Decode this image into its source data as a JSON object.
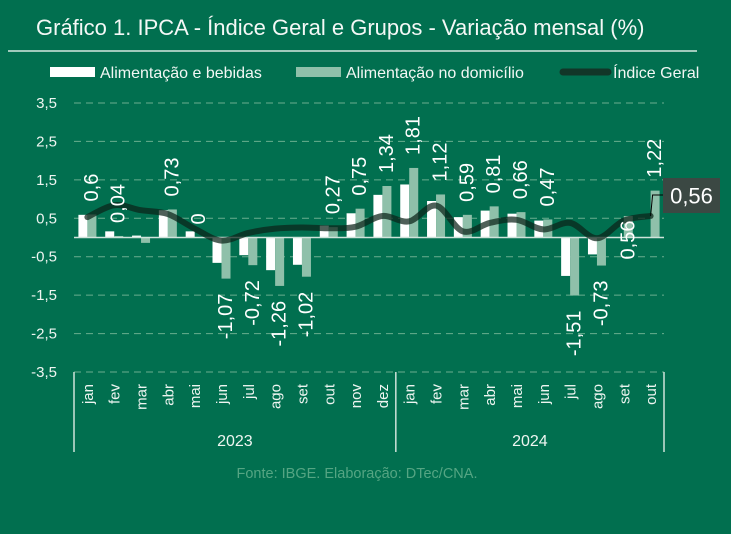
{
  "footer": "Fonte: IBGE. Elaboração: DTec/CNA.",
  "colors": {
    "background": "#016f4f",
    "alimentacao_bebidas": "#ffffff",
    "alimentacao_domicilio": "#8fc0aa",
    "indice_geral": "#0b2219",
    "label_box": "#3b4843",
    "gridline": "#6aae8f",
    "axis": "#cfe3da"
  },
  "chart_data": {
    "type": "bar",
    "title": "Gráfico 1. IPCA - Índice Geral e Grupos - Variação mensal (%)",
    "xlabel": "",
    "ylabel": "",
    "ylim": [
      -3.5,
      3.5
    ],
    "y_ticks": [
      3.5,
      2.5,
      1.5,
      0.5,
      -0.5,
      -1.5,
      -2.5,
      -3.5
    ],
    "y_tick_labels": [
      "3,5",
      "2,5",
      "1,5",
      "0,5",
      "-0,5",
      "-1,5",
      "-2,5",
      "-3,5"
    ],
    "grid": true,
    "legend_position": "top",
    "categories": [
      "jan",
      "fev",
      "mar",
      "abr",
      "mai",
      "jun",
      "jul",
      "ago",
      "set",
      "out",
      "nov",
      "dez",
      "jan",
      "fev",
      "mar",
      "abr",
      "mai",
      "jun",
      "jul",
      "ago",
      "set",
      "out"
    ],
    "groups": [
      {
        "label": "2023",
        "count": 12
      },
      {
        "label": "2024",
        "count": 10
      }
    ],
    "series": [
      {
        "name": "Alimentação e bebidas",
        "type": "bar",
        "values": [
          0.59,
          0.16,
          0.05,
          0.71,
          0.16,
          -0.66,
          -0.46,
          -0.85,
          -0.71,
          0.31,
          0.63,
          1.11,
          1.38,
          0.95,
          0.53,
          0.7,
          0.62,
          0.44,
          -1.0,
          -0.44,
          null,
          null
        ]
      },
      {
        "name": "Alimentação no domicílio",
        "type": "bar",
        "values": [
          0.6,
          0.04,
          -0.14,
          0.73,
          0.0,
          -1.07,
          -0.72,
          -1.26,
          -1.02,
          0.27,
          0.75,
          1.34,
          1.81,
          1.12,
          0.59,
          0.81,
          0.66,
          0.47,
          -1.51,
          -0.73,
          0.56,
          1.22
        ],
        "data_labels": [
          "0,6",
          "0,04",
          null,
          "0,73",
          "0",
          "-1,07",
          "-0,72",
          "-1,26",
          "-1,02",
          "0,27",
          "0,75",
          "1,34",
          "1,81",
          "1,12",
          "0,59",
          "0,81",
          "0,66",
          "0,47",
          "-1,51",
          "-0,73",
          "0,56",
          "1,22"
        ]
      },
      {
        "name": "Índice Geral",
        "type": "line",
        "values": [
          0.53,
          0.84,
          0.71,
          0.61,
          0.23,
          -0.08,
          0.12,
          0.23,
          0.26,
          0.24,
          0.28,
          0.56,
          0.42,
          0.83,
          0.16,
          0.38,
          0.46,
          0.21,
          0.38,
          -0.02,
          0.44,
          0.56
        ],
        "end_label": "0,56"
      }
    ]
  }
}
